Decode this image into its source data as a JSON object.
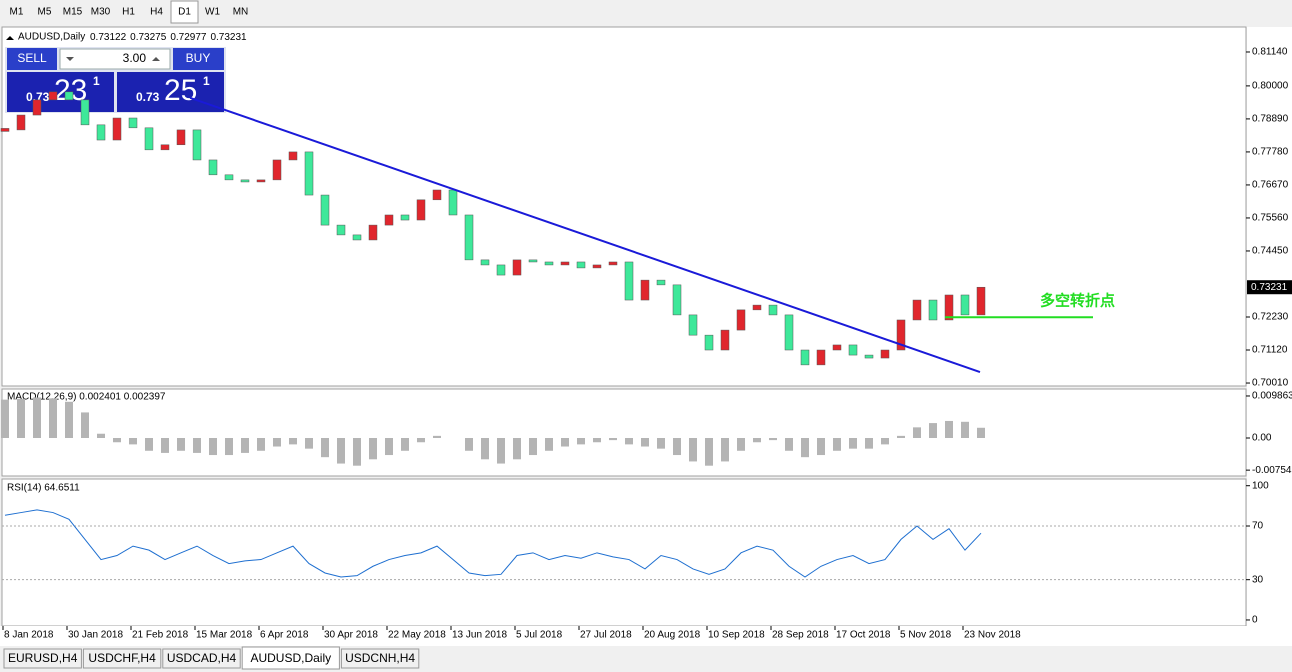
{
  "toolbar": {
    "timeframes": [
      "M1",
      "M5",
      "M15",
      "M30",
      "H1",
      "H4",
      "D1",
      "W1",
      "MN"
    ],
    "active": 6
  },
  "order_panel": {
    "sell": "SELL",
    "buy": "BUY",
    "volume": "3.00",
    "bid": {
      "big": "0.73",
      "main": "23",
      "small": "1"
    },
    "ask": {
      "big": "0.73",
      "main": "25",
      "small": "1"
    }
  },
  "chart_data": [
    {
      "type": "candlestick",
      "title": "AUDUSD,Daily",
      "ohlc": [
        0.73122,
        0.73275,
        0.72977,
        0.73231
      ],
      "values": [
        0.7852,
        0.7902,
        0.7953,
        0.798,
        0.7953,
        0.7869,
        0.7818,
        0.7892,
        0.7859,
        0.7785,
        0.7802,
        0.7852,
        0.7751,
        0.7701,
        0.7684,
        0.7677,
        0.7684,
        0.7751,
        0.7778,
        0.7633,
        0.7532,
        0.7499,
        0.7482,
        0.7532,
        0.7566,
        0.7549,
        0.7617,
        0.765,
        0.7566,
        0.7415,
        0.7398,
        0.7364,
        0.7415,
        0.7408,
        0.7398,
        0.7408,
        0.7388,
        0.7398,
        0.7408,
        0.728,
        0.7347,
        0.7331,
        0.723,
        0.7162,
        0.7112,
        0.7179,
        0.7247,
        0.7263,
        0.723,
        0.7112,
        0.7062,
        0.7112,
        0.7129,
        0.7095,
        0.7085,
        0.7112,
        0.7213,
        0.728,
        0.7213,
        0.7297,
        0.723,
        0.73231
      ],
      "up_color": "#e0262d",
      "down_color": "#3ee89a",
      "ylim": [
        0.6991,
        0.8198
      ],
      "yticks": [
        {
          "value": 0.8114,
          "label": "0.81140"
        },
        {
          "value": 0.8,
          "label": "0.80000"
        },
        {
          "value": 0.7889,
          "label": "0.78890"
        },
        {
          "value": 0.7778,
          "label": "0.77780"
        },
        {
          "value": 0.7667,
          "label": "0.76670"
        },
        {
          "value": 0.7556,
          "label": "0.75560"
        },
        {
          "value": 0.7445,
          "label": "0.74450"
        },
        {
          "value": 0.7223,
          "label": "0.72230"
        },
        {
          "value": 0.7112,
          "label": "0.71120"
        },
        {
          "value": 0.7001,
          "label": "0.70010"
        }
      ],
      "last_price": 0.73231,
      "trendline": [
        0.796,
        0.7038
      ],
      "trendline_color": "#1a1ad8",
      "level": 0.7222,
      "level_color": "#22dd22",
      "annotation": "多空转折点",
      "xticks": [
        "8 Jan 2018",
        "30 Jan 2018",
        "21 Feb 2018",
        "15 Mar 2018",
        "6 Apr 2018",
        "30 Apr 2018",
        "22 May 2018",
        "13 Jun 2018",
        "5 Jul 2018",
        "27 Jul 2018",
        "20 Aug 2018",
        "10 Sep 2018",
        "28 Sep 2018",
        "17 Oct 2018",
        "5 Nov 2018",
        "23 Nov 2018"
      ]
    },
    {
      "type": "histogram",
      "title": "MACD(12,26,9) 0.002401 0.002397",
      "color": "#b4b4b4",
      "values": [
        0.009,
        0.0092,
        0.0095,
        0.0093,
        0.0085,
        0.006,
        0.001,
        -0.001,
        -0.0015,
        -0.003,
        -0.0035,
        -0.003,
        -0.0035,
        -0.004,
        -0.004,
        -0.0035,
        -0.003,
        -0.002,
        -0.0015,
        -0.0025,
        -0.0045,
        -0.006,
        -0.0065,
        -0.005,
        -0.004,
        -0.003,
        -0.001,
        0.0005,
        0,
        -0.003,
        -0.005,
        -0.006,
        -0.005,
        -0.004,
        -0.003,
        -0.002,
        -0.0015,
        -0.001,
        -0.0005,
        -0.0015,
        -0.002,
        -0.0025,
        -0.004,
        -0.0055,
        -0.0065,
        -0.0055,
        -0.003,
        -0.001,
        -0.0005,
        -0.003,
        -0.0045,
        -0.004,
        -0.003,
        -0.0025,
        -0.0025,
        -0.0015,
        0.0005,
        0.0025,
        0.0035,
        0.004,
        0.0038,
        0.0024
      ],
      "ylim": [
        -0.00892,
        0.0115
      ],
      "yticks": [
        0.009863,
        {
          "value": 0,
          "label": "0.00"
        },
        -0.007543
      ]
    },
    {
      "type": "line",
      "title": "RSI(14) 64.6511",
      "color": "#1e6fd0",
      "values": [
        78,
        80,
        82,
        80,
        75,
        60,
        45,
        48,
        55,
        52,
        45,
        50,
        55,
        48,
        42,
        44,
        45,
        50,
        55,
        42,
        35,
        32,
        33,
        40,
        45,
        48,
        50,
        55,
        45,
        35,
        33,
        34,
        48,
        50,
        45,
        48,
        46,
        50,
        47,
        45,
        38,
        48,
        45,
        38,
        34,
        38,
        50,
        55,
        52,
        40,
        32,
        40,
        45,
        48,
        42,
        45,
        60,
        70,
        60,
        68,
        52,
        64.6511
      ],
      "ylim": [
        -4.5,
        105
      ],
      "yticks": [
        100,
        70,
        30,
        0
      ],
      "dotted_levels": [
        70,
        30
      ]
    }
  ],
  "tabs": {
    "items": [
      "EURUSD,H4",
      "USDCHF,H4",
      "USDCAD,H4",
      "AUDUSD,Daily",
      "USDCNH,H4"
    ],
    "active": 3
  }
}
